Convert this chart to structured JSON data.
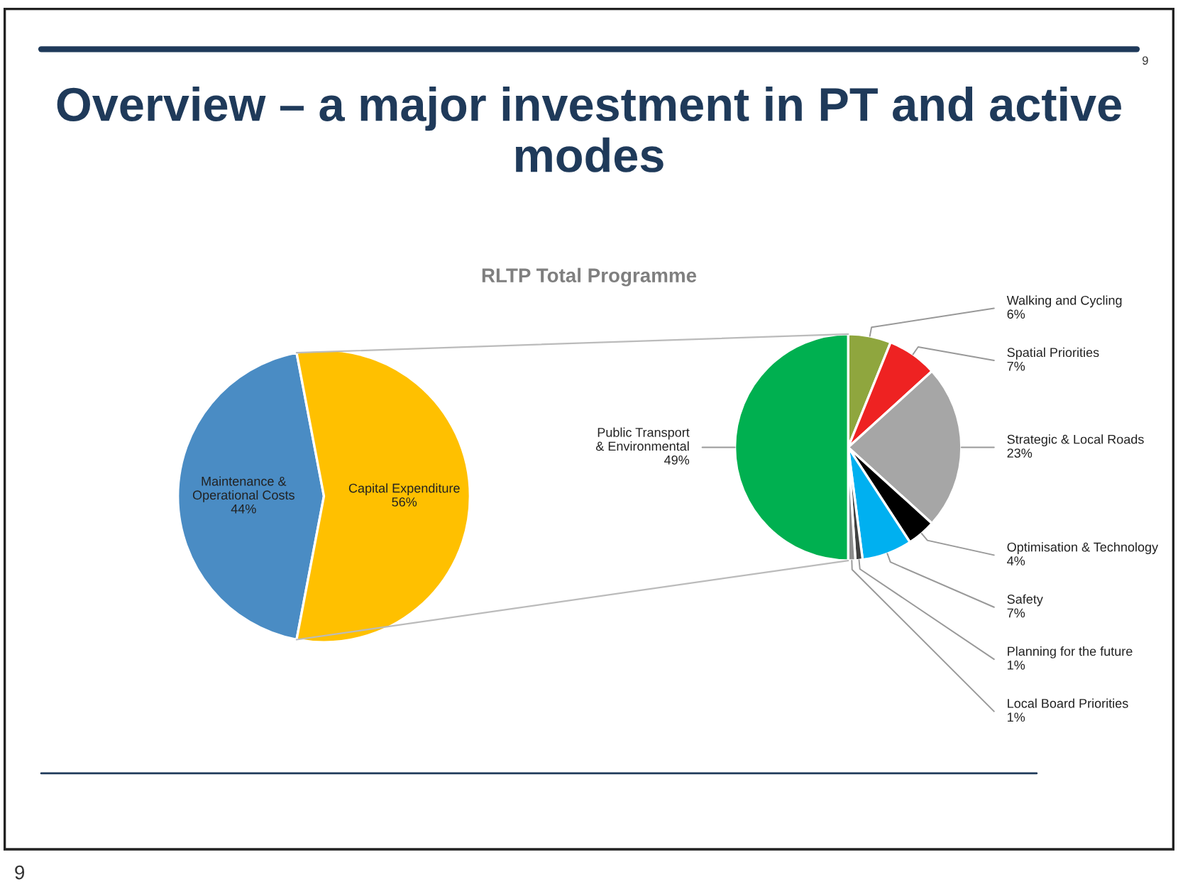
{
  "chart_data": [
    {
      "type": "pie",
      "title": "Overview – a major investment in PT and active modes",
      "subtitle": "RLTP Total Programme",
      "categories": [
        "Maintenance & Operational Costs",
        "Capital Expenditure"
      ],
      "values": [
        44,
        56
      ],
      "value_labels": [
        "44%",
        "56%"
      ],
      "colors": [
        "#4a8cc4",
        "#ffc000"
      ],
      "annotations": [
        "9",
        "9"
      ]
    },
    {
      "type": "pie",
      "categories": [
        "Walking and Cycling",
        "Spatial Priorities",
        "Strategic & Local Roads",
        "Optimisation & Technology",
        "Safety",
        "Planning for the future",
        "Local Board Priorities",
        "Public Transport & Environmental"
      ],
      "values": [
        6,
        7,
        23,
        4,
        7,
        1,
        1,
        49
      ],
      "value_labels": [
        "6%",
        "7%",
        "23%",
        "4%",
        "7%",
        "1%",
        "1%",
        "49%"
      ],
      "colors": [
        "#8fa63e",
        "#ee2222",
        "#a6a6a6",
        "#000000",
        "#00b0f0",
        "#404040",
        "#8c8c8c",
        "#00b050"
      ]
    }
  ]
}
